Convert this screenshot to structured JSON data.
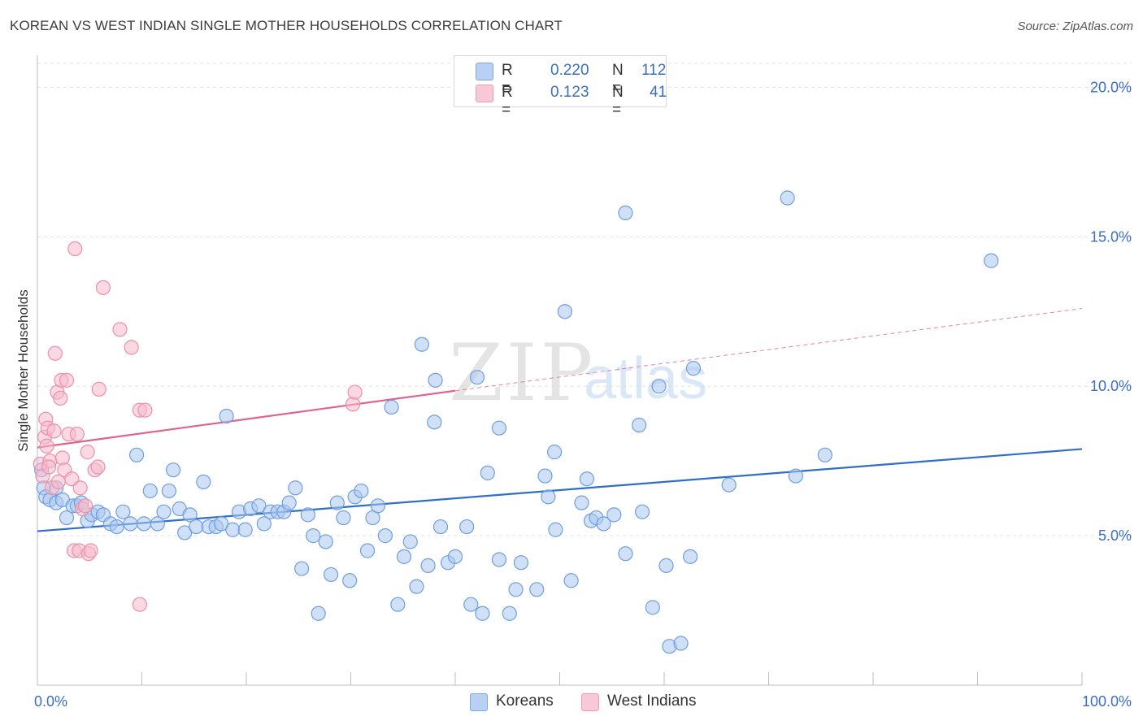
{
  "title": "KOREAN VS WEST INDIAN SINGLE MOTHER HOUSEHOLDS CORRELATION CHART",
  "source": "Source: ZipAtlas.com",
  "watermark": {
    "zip": "ZIP",
    "atlas": "atlas"
  },
  "colors": {
    "blue_fill": "#a9c7f0",
    "blue_stroke": "#6f9fe0",
    "blue_line": "#2f6fc8",
    "pink_fill": "#f7b9cb",
    "pink_stroke": "#ec8fab",
    "pink_line": "#e0638d",
    "axis_text": "#3a6fc4",
    "grid": "#e3e3e3"
  },
  "legend": {
    "rows": [
      {
        "series": "Koreans",
        "r_label": "R =",
        "r_value": "0.220",
        "n_label": "N =",
        "n_value": "112",
        "color": "#a9c7f0"
      },
      {
        "series": "West Indians",
        "r_label": "R =",
        "r_value": "0.123",
        "n_label": "N =",
        "n_value": "41",
        "color": "#f7b9cb"
      }
    ]
  },
  "bottom_legend": [
    {
      "label": "Koreans",
      "color": "#a9c7f0"
    },
    {
      "label": "West Indians",
      "color": "#f7b9cb"
    }
  ],
  "chart_data": {
    "type": "scatter",
    "title": "KOREAN VS WEST INDIAN SINGLE MOTHER HOUSEHOLDS CORRELATION CHART",
    "xlabel": "",
    "ylabel": "Single Mother Households",
    "xlim": [
      0,
      100
    ],
    "ylim": [
      0,
      20.8
    ],
    "x_tick_labels": [
      {
        "value": 0,
        "label": "0.0%"
      },
      {
        "value": 100,
        "label": "100.0%"
      }
    ],
    "y_tick_labels": [
      {
        "value": 5,
        "label": "5.0%"
      },
      {
        "value": 10,
        "label": "10.0%"
      },
      {
        "value": 15,
        "label": "15.0%"
      },
      {
        "value": 20,
        "label": "20.0%"
      }
    ],
    "grid": true,
    "legend_position": "top-center",
    "series": [
      {
        "name": "Koreans",
        "color": "#a9c7f0",
        "trend": {
          "x": [
            0,
            100
          ],
          "y": [
            5.15,
            7.9
          ],
          "style": "solid"
        },
        "points": [
          [
            0.4,
            7.2
          ],
          [
            0.6,
            6.6
          ],
          [
            0.8,
            6.3
          ],
          [
            1.2,
            6.2
          ],
          [
            1.8,
            6.1
          ],
          [
            2.4,
            6.2
          ],
          [
            2.8,
            5.6
          ],
          [
            3.4,
            6.0
          ],
          [
            3.8,
            6.0
          ],
          [
            4.2,
            6.1
          ],
          [
            4.8,
            5.5
          ],
          [
            5.2,
            5.7
          ],
          [
            5.8,
            5.8
          ],
          [
            6.3,
            5.7
          ],
          [
            7.0,
            5.4
          ],
          [
            7.6,
            5.3
          ],
          [
            8.2,
            5.8
          ],
          [
            8.9,
            5.4
          ],
          [
            9.5,
            7.7
          ],
          [
            10.2,
            5.4
          ],
          [
            10.8,
            6.5
          ],
          [
            11.5,
            5.4
          ],
          [
            12.1,
            5.8
          ],
          [
            12.6,
            6.5
          ],
          [
            13.0,
            7.2
          ],
          [
            13.6,
            5.9
          ],
          [
            14.1,
            5.1
          ],
          [
            14.6,
            5.7
          ],
          [
            15.2,
            5.3
          ],
          [
            15.9,
            6.8
          ],
          [
            16.4,
            5.3
          ],
          [
            17.1,
            5.3
          ],
          [
            17.6,
            5.4
          ],
          [
            18.1,
            9.0
          ],
          [
            18.7,
            5.2
          ],
          [
            19.3,
            5.8
          ],
          [
            19.9,
            5.2
          ],
          [
            20.4,
            5.9
          ],
          [
            21.2,
            6.0
          ],
          [
            21.7,
            5.4
          ],
          [
            22.3,
            5.8
          ],
          [
            23.0,
            5.8
          ],
          [
            23.6,
            5.8
          ],
          [
            24.1,
            6.1
          ],
          [
            24.7,
            6.6
          ],
          [
            25.3,
            3.9
          ],
          [
            25.9,
            5.7
          ],
          [
            26.4,
            5.0
          ],
          [
            26.9,
            2.4
          ],
          [
            27.6,
            4.8
          ],
          [
            28.1,
            3.7
          ],
          [
            28.7,
            6.1
          ],
          [
            29.3,
            5.6
          ],
          [
            29.9,
            3.5
          ],
          [
            30.4,
            6.3
          ],
          [
            31.0,
            6.5
          ],
          [
            31.6,
            4.5
          ],
          [
            32.1,
            5.6
          ],
          [
            32.6,
            6.0
          ],
          [
            33.3,
            5.0
          ],
          [
            33.9,
            9.3
          ],
          [
            34.5,
            2.7
          ],
          [
            35.1,
            4.3
          ],
          [
            35.7,
            4.8
          ],
          [
            36.3,
            3.3
          ],
          [
            36.8,
            11.4
          ],
          [
            37.4,
            4.0
          ],
          [
            38.0,
            8.8
          ],
          [
            38.6,
            5.3
          ],
          [
            39.3,
            4.1
          ],
          [
            38.1,
            10.2
          ],
          [
            40.0,
            4.3
          ],
          [
            41.1,
            5.3
          ],
          [
            41.5,
            2.7
          ],
          [
            42.1,
            10.3
          ],
          [
            42.6,
            2.4
          ],
          [
            43.1,
            7.1
          ],
          [
            44.2,
            8.6
          ],
          [
            44.2,
            4.2
          ],
          [
            45.2,
            2.4
          ],
          [
            45.8,
            3.2
          ],
          [
            46.3,
            4.1
          ],
          [
            47.8,
            3.2
          ],
          [
            48.6,
            7.0
          ],
          [
            48.9,
            6.3
          ],
          [
            49.6,
            5.2
          ],
          [
            49.5,
            7.8
          ],
          [
            50.5,
            12.5
          ],
          [
            51.1,
            3.5
          ],
          [
            52.1,
            6.1
          ],
          [
            52.6,
            6.9
          ],
          [
            53.0,
            5.5
          ],
          [
            53.5,
            5.6
          ],
          [
            54.2,
            5.4
          ],
          [
            55.2,
            5.7
          ],
          [
            56.3,
            15.8
          ],
          [
            56.3,
            4.4
          ],
          [
            57.6,
            8.7
          ],
          [
            57.9,
            5.8
          ],
          [
            58.9,
            2.6
          ],
          [
            59.5,
            10.0
          ],
          [
            60.2,
            4.0
          ],
          [
            60.5,
            1.3
          ],
          [
            61.6,
            1.4
          ],
          [
            62.5,
            4.3
          ],
          [
            62.8,
            10.6
          ],
          [
            66.2,
            6.7
          ],
          [
            72.6,
            7.0
          ],
          [
            75.4,
            7.7
          ],
          [
            71.8,
            16.3
          ],
          [
            91.3,
            14.2
          ],
          [
            1.8,
            6.6
          ]
        ]
      },
      {
        "name": "West Indians",
        "color": "#f7b9cb",
        "trend": {
          "x": [
            0,
            40
          ],
          "y": [
            7.95,
            9.85
          ],
          "style": "solid",
          "extension": {
            "x": [
              40,
              100
            ],
            "y": [
              9.85,
              12.6
            ],
            "style": "dashed"
          }
        },
        "points": [
          [
            0.3,
            7.4
          ],
          [
            0.5,
            7.0
          ],
          [
            0.7,
            8.3
          ],
          [
            0.8,
            8.9
          ],
          [
            1.0,
            8.6
          ],
          [
            1.2,
            7.5
          ],
          [
            1.4,
            6.6
          ],
          [
            1.6,
            8.5
          ],
          [
            1.7,
            11.1
          ],
          [
            1.9,
            9.8
          ],
          [
            2.0,
            6.8
          ],
          [
            2.2,
            9.6
          ],
          [
            2.3,
            10.2
          ],
          [
            2.4,
            7.6
          ],
          [
            2.6,
            7.2
          ],
          [
            2.8,
            10.2
          ],
          [
            3.0,
            8.4
          ],
          [
            3.3,
            6.9
          ],
          [
            3.5,
            4.5
          ],
          [
            3.6,
            14.6
          ],
          [
            3.8,
            8.4
          ],
          [
            4.0,
            4.5
          ],
          [
            4.1,
            6.6
          ],
          [
            4.3,
            5.9
          ],
          [
            4.6,
            6.0
          ],
          [
            4.8,
            7.8
          ],
          [
            4.9,
            4.4
          ],
          [
            5.1,
            4.5
          ],
          [
            5.5,
            7.2
          ],
          [
            5.8,
            7.3
          ],
          [
            5.9,
            9.9
          ],
          [
            6.3,
            13.3
          ],
          [
            7.9,
            11.9
          ],
          [
            9.0,
            11.3
          ],
          [
            9.8,
            9.2
          ],
          [
            9.8,
            2.7
          ],
          [
            10.3,
            9.2
          ],
          [
            30.2,
            9.4
          ],
          [
            30.4,
            9.8
          ],
          [
            1.1,
            7.3
          ],
          [
            0.9,
            8.0
          ]
        ]
      }
    ]
  }
}
